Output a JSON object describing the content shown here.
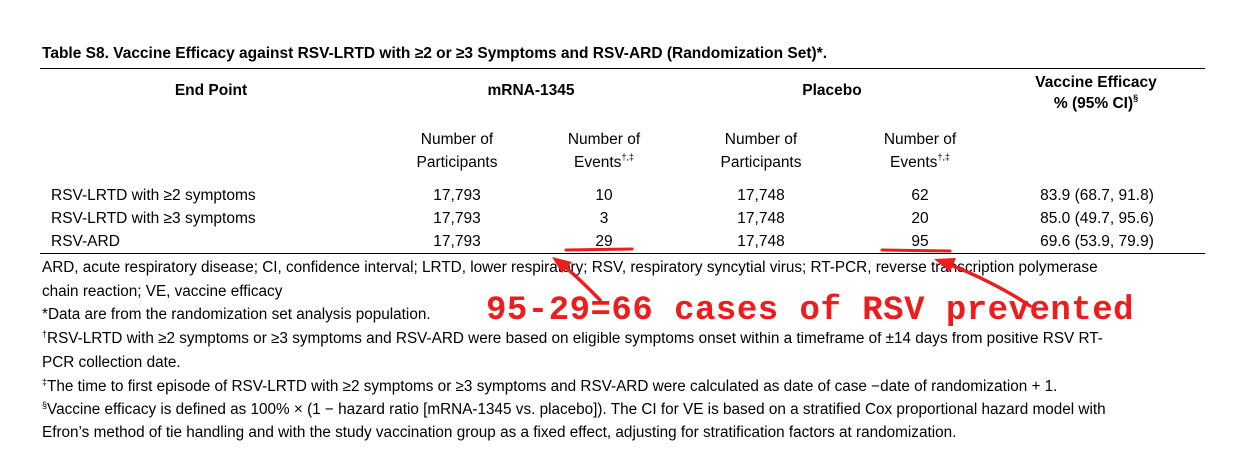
{
  "table": {
    "caption": "Table S8. Vaccine Efficacy against RSV-LRTD with ≥2 or ≥3 Symptoms and RSV-ARD (Randomization Set)*.",
    "headers": {
      "endpoint": "End Point",
      "mrna": "mRNA-1345",
      "placebo": "Placebo",
      "ve_line1": "Vaccine Efficacy",
      "ve_line2": "% (95% CI)",
      "ve_mark": "§",
      "participants_l1": "Number of",
      "participants_l2": "Participants",
      "events_l1": "Number of",
      "events_l2": "Events",
      "events_mark": "†,‡"
    },
    "rows": [
      {
        "endpoint": "RSV-LRTD with ≥2 symptoms",
        "mrna_participants": "17,793",
        "mrna_events": "10",
        "placebo_participants": "17,748",
        "placebo_events": "62",
        "ve": "83.9 (68.7, 91.8)"
      },
      {
        "endpoint": "RSV-LRTD with ≥3 symptoms",
        "mrna_participants": "17,793",
        "mrna_events": "3",
        "placebo_participants": "17,748",
        "placebo_events": "20",
        "ve": "85.0 (49.7, 95.6)"
      },
      {
        "endpoint": "RSV-ARD",
        "mrna_participants": "17,793",
        "mrna_events": "29",
        "placebo_participants": "17,748",
        "placebo_events": "95",
        "ve": "69.6 (53.9, 79.9)"
      }
    ]
  },
  "footnotes": {
    "abbrev_l1": "ARD, acute respiratory disease; CI, confidence interval; LRTD, lower respiratory; RSV, respiratory syncytial virus; RT-PCR, reverse transcription polymerase",
    "abbrev_l2": "chain reaction; VE, vaccine efficacy",
    "star": "*Data are from the randomization set analysis population.",
    "dagger_mark": "†",
    "dagger_l1": "RSV-LRTD with ≥2 symptoms or ≥3 symptoms and RSV-ARD were based on eligible symptoms onset within a timeframe of ±14 days from positive RSV RT-",
    "dagger_l2": "PCR collection date.",
    "ddagger_mark": "‡",
    "ddagger": "The time to first episode of RSV-LRTD with ≥2 symptoms or ≥3 symptoms and RSV-ARD were calculated as date of case −date of randomization + 1.",
    "section_mark": "§",
    "section_l1": "Vaccine efficacy is defined as 100% × (1 − hazard ratio [mRNA-1345 vs. placebo]). The CI for VE is based on a stratified Cox proportional hazard model with",
    "section_l2": "Efron’s method of tie handling and with the study vaccination group as a fixed effect, adjusting for stratification factors at randomization."
  },
  "annotation": {
    "text": "95-29=66 cases of RSV prevented",
    "color": "#ee1c1c"
  }
}
